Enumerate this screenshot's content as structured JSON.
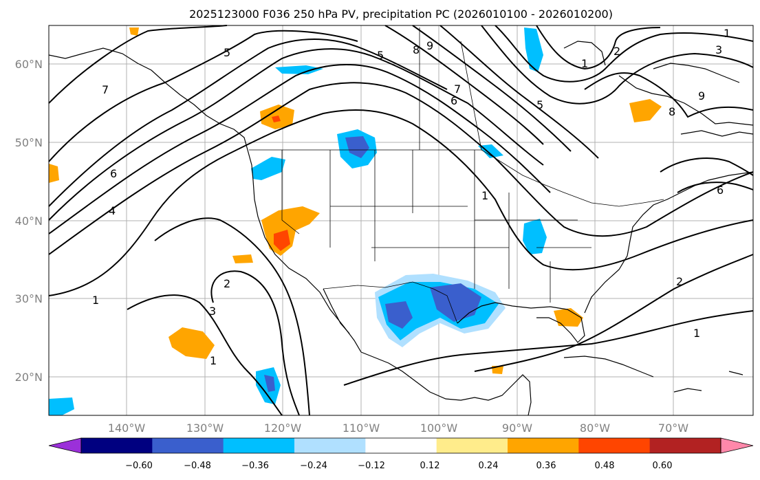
{
  "title": "2025123000 F036 250 hPa PV, precipitation PC (2026010100 - 2026010200)",
  "latitude_labels": [
    "60°N",
    "50°N",
    "40°N",
    "30°N",
    "20°N"
  ],
  "longitude_labels": [
    "140°W",
    "130°W",
    "120°W",
    "110°W",
    "100°W",
    "90°W",
    "80°W",
    "70°W"
  ],
  "colorbar": {
    "tick_labels": [
      "−0.60",
      "−0.48",
      "−0.36",
      "−0.24",
      "−0.12",
      "0.12",
      "0.24",
      "0.36",
      "0.48",
      "0.60"
    ],
    "colors": [
      "#9b30d9",
      "#000080",
      "#3a5fcd",
      "#00bfff",
      "#b0e0ff",
      "#ffffff",
      "#ffec8b",
      "#ffa500",
      "#ff4500",
      "#b22222",
      "#ff88aa"
    ]
  },
  "contour_labels": [
    "1",
    "2",
    "3",
    "4",
    "5",
    "6",
    "7",
    "8",
    "9"
  ],
  "colors": {
    "ocean": "#ffffff",
    "contour": "#000000",
    "grid": "#b0b0b0"
  }
}
